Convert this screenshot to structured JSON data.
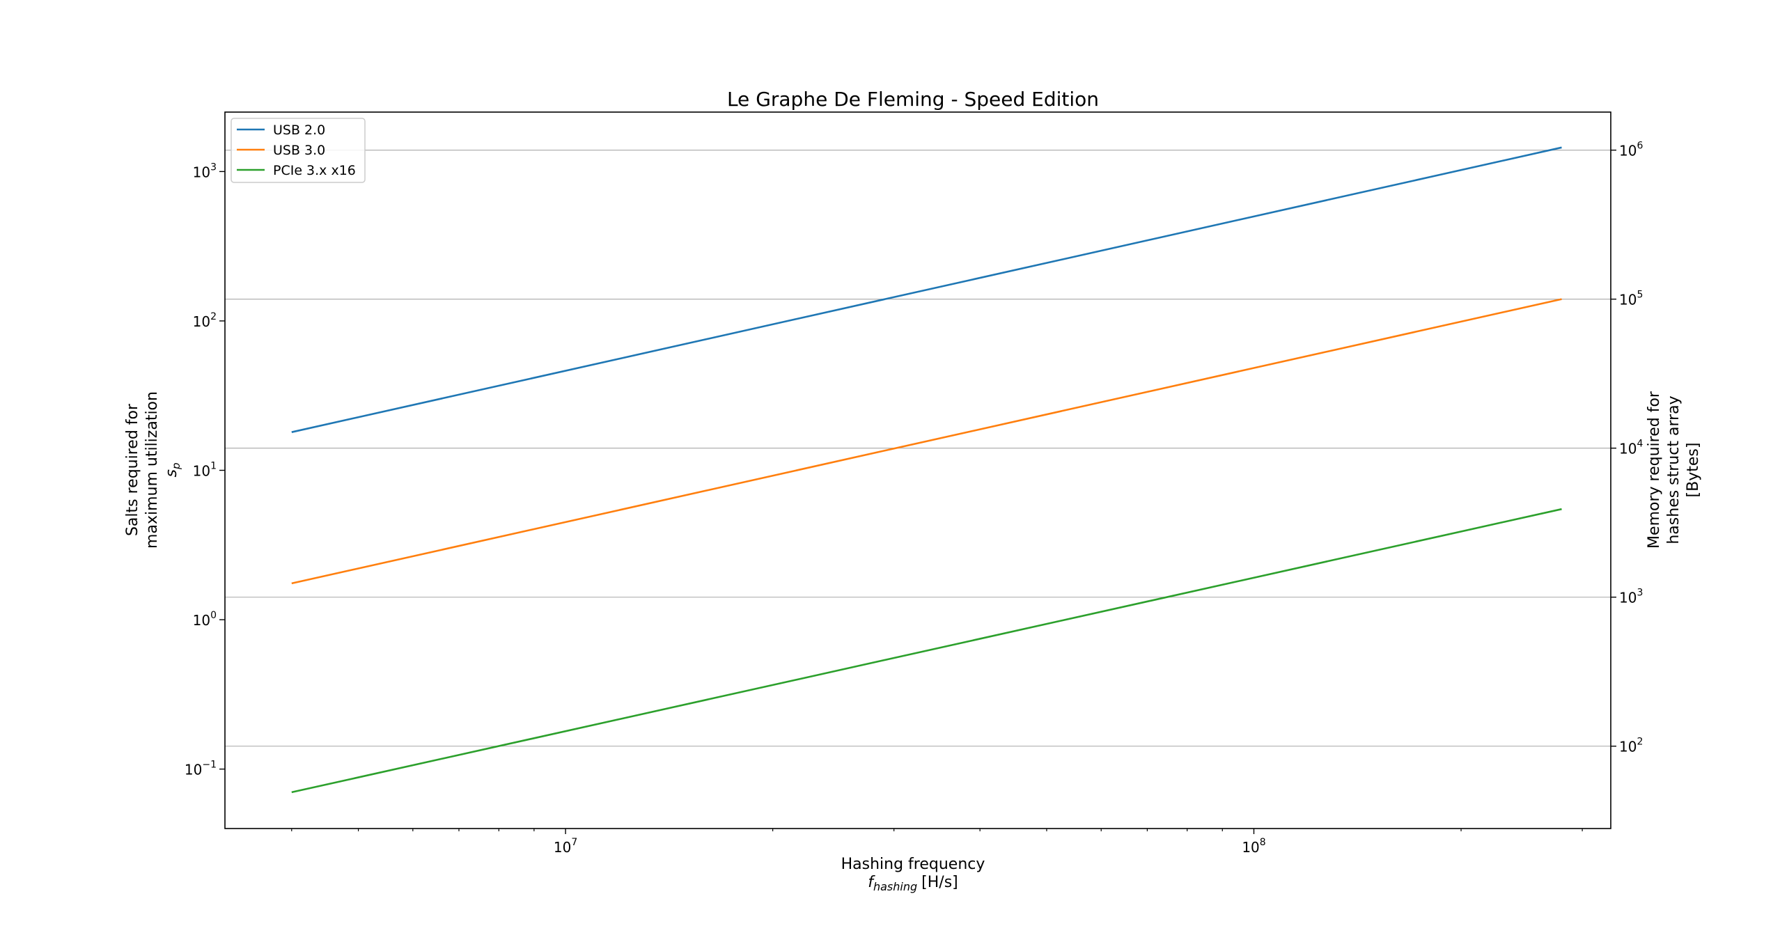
{
  "chart_data": {
    "type": "line",
    "title": "Le Graphe De Fleming - Speed Edition",
    "xlabel": "Hashing frequency",
    "xlabel_symbol": "f",
    "xlabel_subscript": "hashing",
    "xlabel_unit": "[H/s]",
    "ylabel_lines": [
      "Salts required for",
      "maximum utilization"
    ],
    "ylabel_symbol": "s",
    "ylabel_subscript": "p",
    "y2label_lines": [
      "Memory required for",
      "hashes struct array",
      "[Bytes]"
    ],
    "x_scale": "log",
    "y_scale": "log",
    "y2_scale": "log",
    "xlim": [
      3200000,
      330000000
    ],
    "ylim": [
      0.04,
      2500
    ],
    "y2lim": [
      28,
      1800000
    ],
    "x_ticks": [
      {
        "value": 10000000,
        "base": "10",
        "exp": "7"
      },
      {
        "value": 100000000,
        "base": "10",
        "exp": "8"
      }
    ],
    "y_ticks": [
      {
        "value": 0.1,
        "base": "10",
        "exp": "−1"
      },
      {
        "value": 1,
        "base": "10",
        "exp": "0"
      },
      {
        "value": 10,
        "base": "10",
        "exp": "1"
      },
      {
        "value": 100,
        "base": "10",
        "exp": "2"
      },
      {
        "value": 1000,
        "base": "10",
        "exp": "3"
      }
    ],
    "y2_ticks": [
      {
        "value": 100,
        "base": "10",
        "exp": "2"
      },
      {
        "value": 1000,
        "base": "10",
        "exp": "3"
      },
      {
        "value": 10000,
        "base": "10",
        "exp": "4"
      },
      {
        "value": 100000,
        "base": "10",
        "exp": "5"
      },
      {
        "value": 1000000,
        "base": "10",
        "exp": "6"
      }
    ],
    "grid": "horizontal, secondary axis major ticks",
    "legend_position": "upper-left",
    "series": [
      {
        "name": "USB 2.0",
        "color": "#1f77b4",
        "x": [
          4000000,
          280000000
        ],
        "y": [
          18,
          1450
        ]
      },
      {
        "name": "USB 3.0",
        "color": "#ff7f0e",
        "x": [
          4000000,
          280000000
        ],
        "y": [
          1.75,
          140
        ]
      },
      {
        "name": "PCIe 3.x x16",
        "color": "#2ca02c",
        "x": [
          4000000,
          280000000
        ],
        "y": [
          0.07,
          5.5
        ]
      }
    ]
  }
}
